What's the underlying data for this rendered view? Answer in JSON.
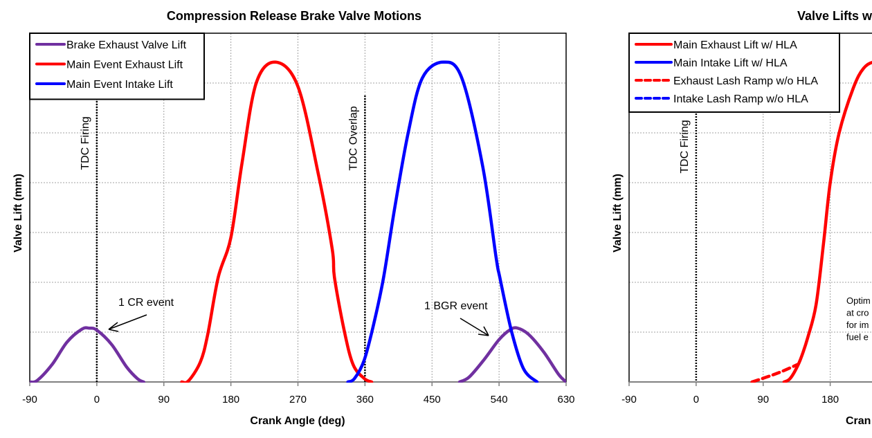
{
  "chart_data": [
    {
      "type": "line",
      "title": "Compression Release Brake Valve Motions",
      "xlabel": "Crank Angle (deg)",
      "ylabel": "Valve Lift (mm)",
      "xlim": [
        -90,
        630
      ],
      "ylim": [
        0,
        7
      ],
      "xticks": [
        -90,
        0,
        90,
        180,
        270,
        360,
        450,
        540,
        630
      ],
      "y_tick_labels_shown": false,
      "grid": true,
      "legend": "top-left",
      "series": [
        {
          "name": "Brake Exhaust Valve Lift",
          "color": "#7030a0",
          "dash": "solid",
          "segments": [
            [
              [
                -90,
                0
              ],
              [
                -80,
                0.03
              ],
              [
                -60,
                0.35
              ],
              [
                -40,
                0.8
              ],
              [
                -20,
                1.06
              ],
              [
                -10,
                1.08
              ],
              [
                0,
                1.04
              ],
              [
                20,
                0.75
              ],
              [
                40,
                0.3
              ],
              [
                55,
                0.06
              ],
              [
                63,
                0
              ]
            ],
            [
              [
                487,
                0
              ],
              [
                500,
                0.1
              ],
              [
                520,
                0.45
              ],
              [
                540,
                0.85
              ],
              [
                555,
                1.05
              ],
              [
                565,
                1.08
              ],
              [
                580,
                0.95
              ],
              [
                600,
                0.6
              ],
              [
                620,
                0.15
              ],
              [
                630,
                0
              ]
            ]
          ]
        },
        {
          "name": "Main Event Exhaust Lift",
          "color": "#ff0000",
          "dash": "solid",
          "segments": [
            [
              [
                114,
                0
              ],
              [
                123,
                0.02
              ],
              [
                139,
                0.4
              ],
              [
                149,
                0.96
              ],
              [
                163,
                2.1
              ],
              [
                180,
                2.9
              ],
              [
                195,
                4.4
              ],
              [
                214,
                6.0
              ],
              [
                240,
                6.42
              ],
              [
                270,
                5.93
              ],
              [
                297,
                4.2
              ],
              [
                316,
                2.67
              ],
              [
                319,
                2.1
              ],
              [
                332,
                1.04
              ],
              [
                344,
                0.35
              ],
              [
                359,
                0.07
              ],
              [
                369,
                0
              ]
            ]
          ]
        },
        {
          "name": "Main Event Intake Lift",
          "color": "#0000ff",
          "dash": "solid",
          "segments": [
            [
              [
                337,
                0
              ],
              [
                346,
                0.07
              ],
              [
                359,
                0.44
              ],
              [
                372,
                1.18
              ],
              [
                385,
                2.1
              ],
              [
                400,
                3.5
              ],
              [
                418,
                5.0
              ],
              [
                437,
                6.1
              ],
              [
                465,
                6.42
              ],
              [
                490,
                6.1
              ],
              [
                518,
                4.33
              ],
              [
                536,
                2.5
              ],
              [
                541,
                2.1
              ],
              [
                557,
                1.0
              ],
              [
                573,
                0.26
              ],
              [
                591,
                0
              ]
            ]
          ]
        }
      ],
      "vlines": [
        {
          "x": 0,
          "label": "TDC Firing"
        },
        {
          "x": 360,
          "label": "TDC Overlap"
        }
      ],
      "annotations": [
        {
          "text": "1 CR event",
          "points_to": [
            -10,
            1.08
          ]
        },
        {
          "text": "1 BGR event",
          "points_to": [
            540,
            0.95
          ]
        }
      ]
    },
    {
      "type": "line",
      "title": "Valve Lifts w",
      "xlabel": "Cran",
      "ylabel": "Valve Lift (mm)",
      "xlim": [
        -90,
        630
      ],
      "ylim": [
        0,
        7
      ],
      "xticks": [
        -90,
        0,
        90,
        180
      ],
      "y_tick_labels_shown": false,
      "grid": true,
      "legend": "top-left",
      "series": [
        {
          "name": "Main Exhaust Lift w/ HLA",
          "color": "#ff0000",
          "dash": "solid",
          "segments": [
            [
              [
                118,
                0
              ],
              [
                125,
                0.05
              ],
              [
                132,
                0.2
              ],
              [
                140,
                0.45
              ],
              [
                150,
                0.9
              ],
              [
                161,
                1.55
              ],
              [
                171,
                2.78
              ],
              [
                180,
                4.0
              ],
              [
                192,
                5.0
              ],
              [
                211,
                5.9
              ],
              [
                225,
                6.3
              ],
              [
                240,
                6.42
              ],
              [
                255,
                6.3
              ]
            ]
          ]
        },
        {
          "name": "Main Intake Lift w/ HLA",
          "color": "#0000ff",
          "dash": "solid",
          "segments": []
        },
        {
          "name": "Exhaust Lash Ramp w/o HLA",
          "color": "#ff0000",
          "dash": "dashed",
          "segments": [
            [
              [
                75,
                0
              ],
              [
                95,
                0.1
              ],
              [
                115,
                0.21
              ],
              [
                136,
                0.35
              ]
            ]
          ]
        },
        {
          "name": "Intake Lash Ramp w/o HLA",
          "color": "#0000ff",
          "dash": "dashed",
          "segments": []
        }
      ],
      "vlines": [
        {
          "x": 0,
          "label": "TDC Firing"
        }
      ],
      "annotation_lines": [
        "Optim",
        "at cro",
        "for im",
        "fuel e"
      ]
    }
  ]
}
